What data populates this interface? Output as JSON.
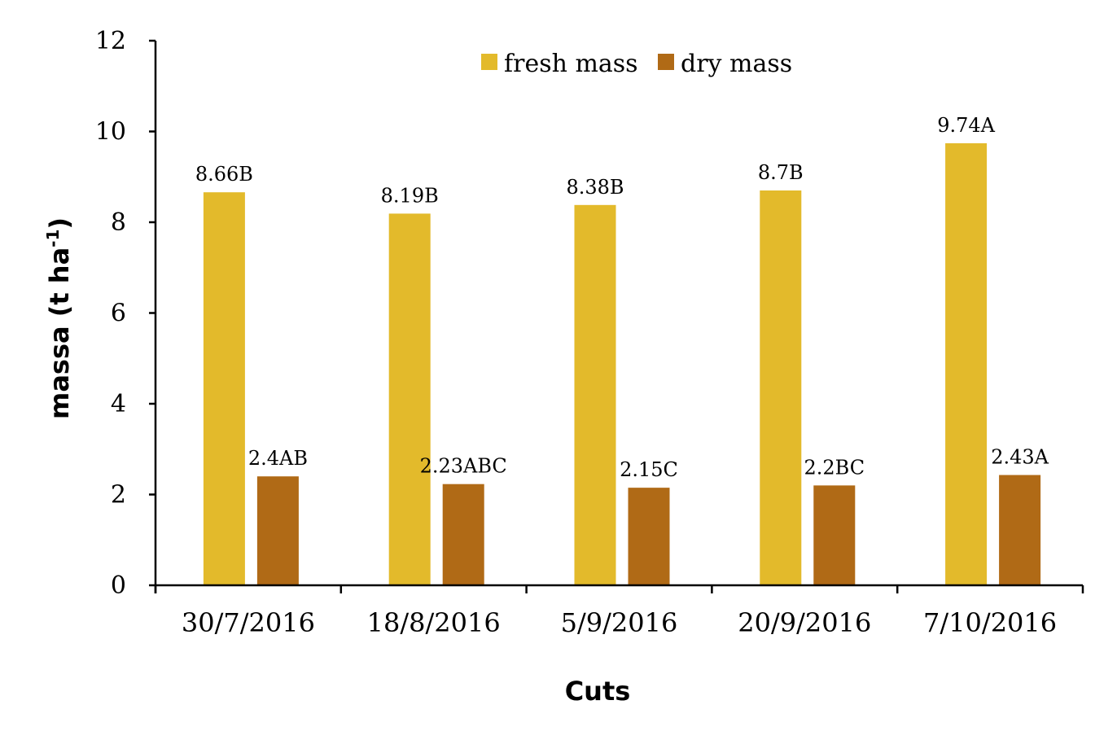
{
  "chart_data": {
    "type": "bar",
    "title": "",
    "xlabel": "Cuts",
    "ylabel": "massa (t ha",
    "ylabel_superscript": "-1",
    "ylabel_close": ")",
    "categories": [
      "30/7/2016",
      "18/8/2016",
      "5/9/2016",
      "20/9/2016",
      "7/10/2016"
    ],
    "series": [
      {
        "name": "fresh mass",
        "color": "#e3ba2b",
        "values": [
          8.66,
          8.19,
          8.38,
          8.7,
          9.74
        ],
        "labels": [
          "8.66B",
          "8.19B",
          "8.38B",
          "8.7B",
          "9.74A"
        ]
      },
      {
        "name": "dry mass",
        "color": "#b06a16",
        "values": [
          2.4,
          2.23,
          2.15,
          2.2,
          2.43
        ],
        "labels": [
          "2.4AB",
          "2.23ABC",
          "2.15C",
          "2.2BC",
          "2.43A"
        ]
      }
    ],
    "ylim": [
      0,
      12
    ],
    "yticks": [
      0,
      2,
      4,
      6,
      8,
      10,
      12
    ],
    "grid": false,
    "legend_position": "top-center"
  }
}
